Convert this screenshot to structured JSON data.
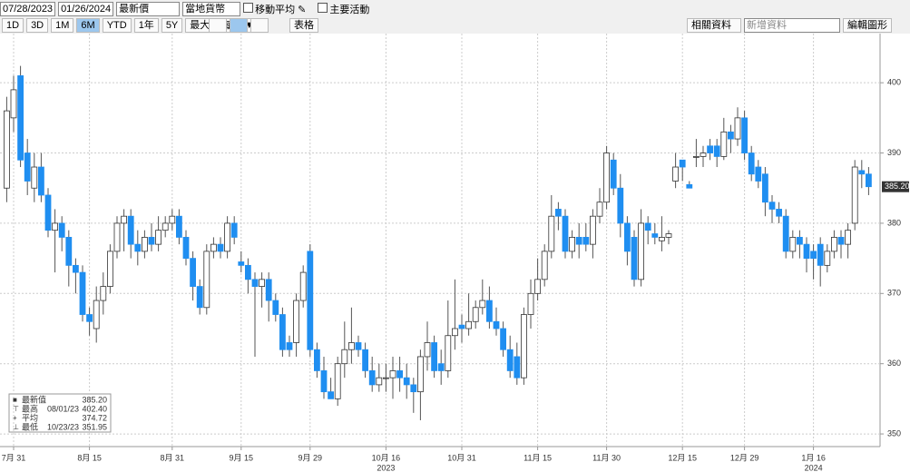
{
  "toolbar": {
    "start_date": "07/28/2023",
    "end_date": "01/26/2024",
    "field": "最新價",
    "currency": "當地貨幣",
    "option_1": "移動平均",
    "option_2": "主要活動",
    "ranges": [
      "1D",
      "3D",
      "1M",
      "6M",
      "YTD",
      "1年",
      "5Y",
      "最大"
    ],
    "active_range": "6M",
    "period": "每日 ▼",
    "table": "表格",
    "related": "相關資料 ▾",
    "add": "新增資料",
    "edit": "編輯圖形"
  },
  "chart_data": {
    "type": "candlestick",
    "categories": [
      null,
      "7月 31",
      null,
      null,
      null,
      null,
      null,
      null,
      null,
      null,
      null,
      null,
      "8月 15",
      null,
      null,
      null,
      null,
      null,
      null,
      null,
      null,
      null,
      null,
      null,
      "8月 31",
      null,
      null,
      null,
      null,
      null,
      null,
      null,
      null,
      null,
      "9月 15",
      null,
      null,
      null,
      null,
      null,
      null,
      null,
      null,
      null,
      "9月 29",
      null,
      null,
      null,
      null,
      null,
      null,
      null,
      null,
      null,
      null,
      "10月 16",
      null,
      null,
      null,
      null,
      null,
      null,
      null,
      null,
      null,
      null,
      "10月 31",
      null,
      null,
      null,
      null,
      null,
      null,
      null,
      null,
      null,
      null,
      "11月 15",
      null,
      null,
      null,
      null,
      null,
      null,
      null,
      null,
      null,
      "11月 30",
      null,
      null,
      null,
      null,
      null,
      null,
      null,
      null,
      null,
      null,
      "12月 15",
      null,
      null,
      null,
      null,
      null,
      null,
      null,
      null,
      "12月 29",
      null,
      null,
      null,
      null,
      null,
      null,
      null,
      null,
      null,
      "1月 16",
      null,
      null,
      null,
      null,
      null,
      null,
      null,
      null
    ],
    "year_labels": [
      {
        "text": "2023",
        "at": "10月 16"
      },
      {
        "text": "2024",
        "at": "1月 16"
      }
    ],
    "open": [
      385,
      395,
      401,
      390,
      385,
      388,
      384,
      379,
      380,
      378,
      374,
      373,
      367,
      365,
      369,
      371,
      376,
      380,
      381,
      377,
      376,
      378,
      377,
      379,
      380,
      381,
      378,
      375,
      371,
      368,
      376,
      377,
      376,
      380,
      374.5,
      374,
      372,
      371,
      372,
      369,
      367,
      363,
      363,
      369,
      376,
      362,
      359,
      356,
      355,
      360,
      362,
      363,
      362,
      359,
      357,
      358,
      358,
      359,
      358,
      357,
      356,
      361,
      363,
      360,
      359,
      364,
      365.5,
      365,
      366,
      368,
      369,
      366,
      365,
      362,
      361,
      358,
      367,
      370,
      372,
      376,
      382,
      381,
      376,
      378,
      378,
      377,
      381,
      383,
      389,
      385,
      380,
      378,
      372,
      380,
      378.5,
      377.5,
      378,
      386,
      389,
      385.5,
      389.5,
      389.5,
      391,
      391,
      389.5,
      393,
      392,
      395,
      390,
      388,
      387,
      383,
      382,
      381,
      376,
      378,
      377,
      376,
      377,
      374,
      376,
      378,
      377,
      380,
      387.5,
      387
    ],
    "high": [
      398,
      401,
      402.4,
      392,
      390,
      390,
      385,
      382,
      381,
      379,
      375,
      374,
      368,
      371,
      373,
      377,
      381,
      382,
      382,
      379,
      379,
      380,
      381,
      381,
      382,
      382,
      379,
      376,
      372,
      377,
      378,
      378,
      381,
      381,
      376,
      375,
      373,
      373,
      373,
      370,
      368,
      364,
      370,
      374,
      377,
      363,
      361,
      358,
      361,
      366,
      368,
      364,
      363,
      361,
      360,
      360,
      361,
      361,
      360,
      358,
      362,
      366,
      364,
      362,
      369,
      372,
      367,
      370,
      369,
      372,
      371,
      368,
      366,
      364,
      363,
      368,
      372,
      375,
      377,
      384,
      383,
      382,
      379,
      380,
      380,
      382,
      385,
      391,
      390,
      387,
      381,
      379,
      382,
      381,
      380,
      381,
      379,
      390,
      389,
      386,
      392,
      391,
      392,
      392,
      395,
      394,
      396.5,
      396,
      391,
      389,
      388,
      384,
      383,
      382,
      379,
      379,
      378,
      377,
      378,
      377,
      379,
      379,
      380,
      389,
      389,
      388
    ],
    "low": [
      383,
      393,
      388,
      384,
      383,
      383,
      378,
      373,
      376,
      371,
      370,
      366,
      364,
      363,
      367,
      370,
      375,
      376,
      375,
      374,
      375,
      376,
      376,
      378,
      379,
      377,
      374,
      369,
      367,
      367,
      375,
      375,
      375,
      377,
      373,
      370,
      361,
      368,
      366,
      366,
      361,
      361,
      361,
      368,
      361,
      358,
      355,
      355,
      354,
      358,
      360,
      361,
      358,
      356,
      356,
      356,
      355,
      356,
      355,
      353,
      351.95,
      359,
      358,
      357,
      358,
      362,
      363,
      364,
      365,
      367,
      365,
      364,
      361,
      358,
      357,
      357,
      365,
      369,
      371,
      375,
      379,
      375,
      375,
      375,
      376,
      375,
      380,
      382,
      384,
      378,
      374,
      371,
      371,
      377,
      377,
      376,
      377,
      385,
      386,
      385,
      388,
      388,
      389,
      388,
      389,
      390,
      391,
      389,
      386,
      385,
      381,
      380,
      380,
      375,
      375,
      375,
      373,
      372,
      371,
      373,
      375,
      375,
      375,
      379,
      385,
      384
    ],
    "close": [
      396,
      399,
      389,
      386,
      388,
      384,
      379,
      380,
      378,
      374,
      373,
      367,
      366,
      369,
      371,
      376,
      380,
      381,
      377,
      376,
      378,
      377,
      379,
      380,
      381,
      378,
      375,
      371,
      368,
      376,
      377,
      376,
      380,
      378,
      374,
      372,
      371,
      372,
      369,
      367,
      362,
      362,
      369,
      373,
      362,
      359,
      356,
      355,
      360,
      362,
      363,
      362,
      359,
      357,
      358,
      358,
      359,
      358,
      357,
      356,
      361,
      363,
      359,
      359,
      364,
      365,
      365,
      366,
      368,
      369,
      366,
      365,
      362,
      359,
      358,
      367,
      370,
      372,
      376,
      381,
      381,
      376,
      378,
      377,
      377,
      381,
      383,
      390,
      385,
      380,
      376,
      372,
      380,
      379,
      378,
      378,
      378.5,
      388,
      388,
      385,
      389.5,
      390,
      390,
      389.5,
      393,
      392,
      395,
      390,
      387,
      386,
      383,
      382,
      381,
      376,
      378,
      377,
      375,
      375,
      374,
      376,
      378,
      377,
      379,
      388,
      387,
      385.2
    ],
    "up_color": "#ffffff",
    "down_color": "#1f8ef1",
    "ylim": [
      348.2,
      407
    ],
    "yticks": [
      350,
      360,
      370,
      380,
      390,
      400
    ],
    "grid": true,
    "last_label": "385.20",
    "legend": [
      {
        "name": "最新值",
        "value": "385.20"
      },
      {
        "name": "最高",
        "date": "08/01/23",
        "value": "402.40"
      },
      {
        "name": "平均",
        "value": "374.72"
      },
      {
        "name": "最低",
        "date": "10/23/23",
        "value": "351.95"
      }
    ]
  }
}
